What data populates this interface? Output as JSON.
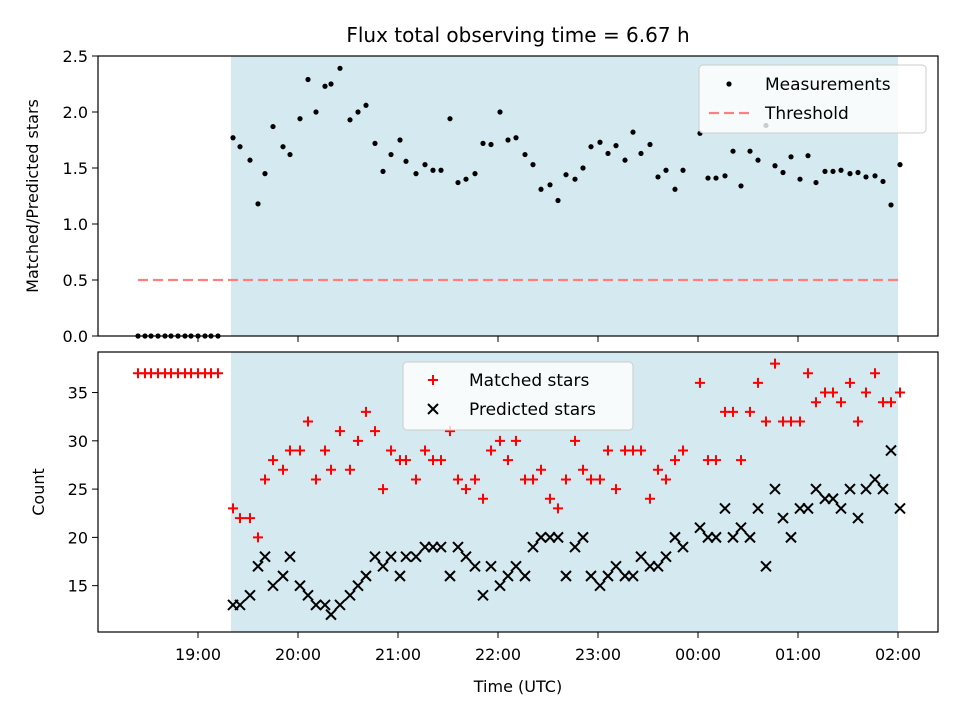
{
  "title": "Flux total observing time = 6.67 h",
  "colors": {
    "shade": "#d4eaf0",
    "threshold": "#ff7f7f",
    "matched": "#ff0000",
    "predicted": "#000000",
    "measurement": "#000000"
  },
  "chart_data": [
    {
      "type": "scatter",
      "panel": "top",
      "title": "Flux total observing time = 6.67 h",
      "xlabel": "",
      "ylabel": "Matched/Predicted stars",
      "ylim": [
        0,
        2.5
      ],
      "yticks": [
        "0.0",
        "0.5",
        "1.0",
        "1.5",
        "2.0",
        "2.5"
      ],
      "xlim_hours": [
        18.0,
        26.4
      ],
      "shaded_span_hours": [
        19.33,
        26.0
      ],
      "legend": [
        "Measurements",
        "Threshold"
      ],
      "legend_position": "top-right",
      "threshold": {
        "name": "Threshold",
        "y": 0.5,
        "x_hours": [
          18.4,
          26.0
        ]
      },
      "series": [
        {
          "name": "Measurements",
          "x_hours": [
            18.4,
            18.47,
            18.53,
            18.6,
            18.67,
            18.73,
            18.8,
            18.87,
            18.93,
            19.0,
            19.07,
            19.13,
            19.2,
            19.35,
            19.42,
            19.52,
            19.6,
            19.67,
            19.75,
            19.85,
            19.92,
            20.02,
            20.1,
            20.18,
            20.27,
            20.33,
            20.42,
            20.52,
            20.6,
            20.68,
            20.77,
            20.85,
            20.93,
            21.02,
            21.08,
            21.18,
            21.27,
            21.35,
            21.43,
            21.52,
            21.6,
            21.68,
            21.77,
            21.85,
            21.93,
            22.02,
            22.1,
            22.18,
            22.27,
            22.35,
            22.43,
            22.52,
            22.6,
            22.68,
            22.77,
            22.85,
            22.93,
            23.02,
            23.1,
            23.18,
            23.27,
            23.35,
            23.43,
            23.52,
            23.6,
            23.68,
            23.77,
            23.85,
            24.02,
            24.1,
            24.18,
            24.27,
            24.35,
            24.43,
            24.52,
            24.6,
            24.68,
            24.77,
            24.85,
            24.93,
            25.02,
            25.1,
            25.18,
            25.27,
            25.35,
            25.43,
            25.52,
            25.6,
            25.68,
            25.77,
            25.85,
            25.93,
            26.02
          ],
          "y": [
            0,
            0,
            0,
            0,
            0,
            0,
            0,
            0,
            0,
            0,
            0,
            0,
            0,
            1.77,
            1.69,
            1.57,
            1.18,
            1.45,
            1.87,
            1.69,
            1.62,
            1.94,
            2.29,
            2.0,
            2.23,
            2.25,
            2.39,
            1.93,
            2.0,
            2.06,
            1.72,
            1.47,
            1.62,
            1.75,
            1.56,
            1.45,
            1.53,
            1.48,
            1.48,
            1.94,
            1.37,
            1.4,
            1.45,
            1.72,
            1.71,
            2.0,
            1.75,
            1.77,
            1.62,
            1.53,
            1.31,
            1.35,
            1.21,
            1.44,
            1.4,
            1.5,
            1.69,
            1.73,
            1.63,
            1.7,
            1.57,
            1.82,
            1.63,
            1.71,
            1.42,
            1.48,
            1.31,
            1.48,
            1.81,
            1.41,
            1.41,
            1.43,
            1.65,
            1.34,
            1.65,
            1.57,
            1.88,
            1.52,
            1.46,
            1.6,
            1.4,
            1.61,
            1.37,
            1.47,
            1.47,
            1.48,
            1.45,
            1.46,
            1.42,
            1.43,
            1.38,
            1.17,
            1.53
          ]
        }
      ]
    },
    {
      "type": "scatter",
      "panel": "bottom",
      "xlabel": "Time (UTC)",
      "ylabel": "Count",
      "ylim": [
        10.2,
        39.2
      ],
      "yticks": [
        "15",
        "20",
        "25",
        "30",
        "35"
      ],
      "xlim_hours": [
        18.0,
        26.4
      ],
      "xticks": [
        "19:00",
        "20:00",
        "21:00",
        "22:00",
        "23:00",
        "00:00",
        "01:00",
        "02:00"
      ],
      "shaded_span_hours": [
        19.33,
        26.0
      ],
      "legend": [
        "Matched stars",
        "Predicted stars"
      ],
      "legend_position": "top-center",
      "series": [
        {
          "name": "Matched stars",
          "x_hours": [
            18.4,
            18.47,
            18.53,
            18.6,
            18.67,
            18.73,
            18.8,
            18.87,
            18.93,
            19.0,
            19.07,
            19.13,
            19.2,
            19.35,
            19.42,
            19.52,
            19.6,
            19.67,
            19.75,
            19.85,
            19.92,
            20.02,
            20.1,
            20.18,
            20.27,
            20.33,
            20.42,
            20.52,
            20.6,
            20.68,
            20.77,
            20.85,
            20.93,
            21.02,
            21.08,
            21.18,
            21.27,
            21.35,
            21.43,
            21.52,
            21.6,
            21.68,
            21.77,
            21.85,
            21.93,
            22.02,
            22.1,
            22.18,
            22.27,
            22.35,
            22.43,
            22.52,
            22.6,
            22.68,
            22.77,
            22.85,
            22.93,
            23.02,
            23.1,
            23.18,
            23.27,
            23.35,
            23.43,
            23.52,
            23.6,
            23.68,
            23.77,
            23.85,
            24.02,
            24.1,
            24.18,
            24.27,
            24.35,
            24.43,
            24.52,
            24.6,
            24.68,
            24.77,
            24.85,
            24.93,
            25.02,
            25.1,
            25.18,
            25.27,
            25.35,
            25.43,
            25.52,
            25.6,
            25.68,
            25.77,
            25.85,
            25.93,
            26.02
          ],
          "y": [
            37,
            37,
            37,
            37,
            37,
            37,
            37,
            37,
            37,
            37,
            37,
            37,
            37,
            23,
            22,
            22,
            20,
            26,
            28,
            27,
            29,
            29,
            32,
            26,
            29,
            27,
            31,
            27,
            30,
            33,
            31,
            25,
            29,
            28,
            28,
            26,
            29,
            28,
            28,
            31,
            26,
            25,
            26,
            24,
            29,
            30,
            28,
            30,
            26,
            26,
            27,
            24,
            23,
            26,
            30,
            27,
            26,
            26,
            29,
            25,
            29,
            29,
            29,
            24,
            27,
            26,
            28,
            29,
            36,
            28,
            28,
            33,
            33,
            28,
            33,
            36,
            32,
            38,
            32,
            32,
            32,
            37,
            34,
            35,
            35,
            34,
            36,
            32,
            35,
            37,
            34,
            34,
            35
          ]
        },
        {
          "name": "Predicted stars",
          "x_hours": [
            19.35,
            19.42,
            19.52,
            19.6,
            19.67,
            19.75,
            19.85,
            19.92,
            20.02,
            20.1,
            20.18,
            20.27,
            20.33,
            20.42,
            20.52,
            20.6,
            20.68,
            20.77,
            20.85,
            20.93,
            21.02,
            21.08,
            21.18,
            21.27,
            21.35,
            21.43,
            21.52,
            21.6,
            21.68,
            21.77,
            21.85,
            21.93,
            22.02,
            22.1,
            22.18,
            22.27,
            22.35,
            22.43,
            22.52,
            22.6,
            22.68,
            22.77,
            22.85,
            22.93,
            23.02,
            23.1,
            23.18,
            23.27,
            23.35,
            23.43,
            23.52,
            23.6,
            23.68,
            23.77,
            23.85,
            24.02,
            24.1,
            24.18,
            24.27,
            24.35,
            24.43,
            24.52,
            24.6,
            24.68,
            24.77,
            24.85,
            24.93,
            25.02,
            25.1,
            25.18,
            25.27,
            25.35,
            25.43,
            25.52,
            25.6,
            25.68,
            25.77,
            25.85,
            25.93,
            26.02
          ],
          "y": [
            13,
            13,
            14,
            17,
            18,
            15,
            16,
            18,
            15,
            14,
            13,
            13,
            12,
            13,
            14,
            15,
            16,
            18,
            17,
            18,
            16,
            18,
            18,
            19,
            19,
            19,
            16,
            19,
            18,
            17,
            14,
            17,
            15,
            16,
            17,
            16,
            19,
            20,
            20,
            20,
            16,
            19,
            20,
            16,
            15,
            16,
            17,
            16,
            16,
            18,
            17,
            17,
            18,
            20,
            19,
            21,
            20,
            20,
            23,
            20,
            21,
            20,
            23,
            17,
            25,
            22,
            20,
            23,
            23,
            25,
            24,
            24,
            23,
            25,
            22,
            25,
            26,
            25,
            29,
            23
          ]
        }
      ]
    }
  ]
}
